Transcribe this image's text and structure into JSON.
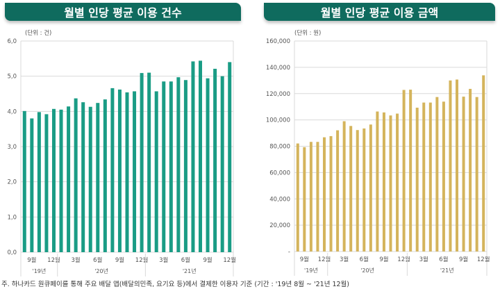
{
  "chart_data": [
    {
      "type": "bar",
      "title": "월별 인당 평균 이용 건수",
      "unit_label": "(단위 : 건)",
      "color": "#1a9c85",
      "ylim": [
        0,
        6
      ],
      "yticks": [
        "0,0",
        "1,0",
        "2,0",
        "3,0",
        "4,0",
        "5,0",
        "6,0"
      ],
      "grid": true,
      "categories": [
        "2019-08",
        "2019-09",
        "2019-10",
        "2019-11",
        "2019-12",
        "2020-01",
        "2020-02",
        "2020-03",
        "2020-04",
        "2020-05",
        "2020-06",
        "2020-07",
        "2020-08",
        "2020-09",
        "2020-10",
        "2020-11",
        "2020-12",
        "2021-01",
        "2021-02",
        "2021-03",
        "2021-04",
        "2021-05",
        "2021-06",
        "2021-07",
        "2021-08",
        "2021-09",
        "2021-10",
        "2021-11",
        "2021-12"
      ],
      "values": [
        4.01,
        3.8,
        3.98,
        3.92,
        4.07,
        4.05,
        4.14,
        4.37,
        4.26,
        4.13,
        4.24,
        4.34,
        4.66,
        4.62,
        4.54,
        4.57,
        5.09,
        5.1,
        4.57,
        4.85,
        4.85,
        4.97,
        4.89,
        5.42,
        5.44,
        4.94,
        5.21,
        5.0,
        5.4
      ],
      "month_labels": [
        {
          "index": 1,
          "text": "9월"
        },
        {
          "index": 4,
          "text": "12월"
        },
        {
          "index": 7,
          "text": "3월"
        },
        {
          "index": 10,
          "text": "6월"
        },
        {
          "index": 13,
          "text": "9월"
        },
        {
          "index": 16,
          "text": "12월"
        },
        {
          "index": 19,
          "text": "3월"
        },
        {
          "index": 22,
          "text": "6월"
        },
        {
          "index": 25,
          "text": "9월"
        },
        {
          "index": 28,
          "text": "12월"
        }
      ],
      "year_labels": [
        {
          "from": 0,
          "to": 4,
          "text": "'19년"
        },
        {
          "from": 5,
          "to": 16,
          "text": "'20년"
        },
        {
          "from": 17,
          "to": 28,
          "text": "'21년"
        }
      ]
    },
    {
      "type": "bar",
      "title": "월별 인당 평균 이용 금액",
      "unit_label": "(단위 : 원)",
      "color": "#d4b45c",
      "ylim": [
        0,
        160000
      ],
      "yticks": [
        "-",
        "20,000",
        "40,000",
        "60,000",
        "80,000",
        "100,000",
        "120,000",
        "140,000",
        "160,000"
      ],
      "grid": true,
      "categories": [
        "2019-08",
        "2019-09",
        "2019-10",
        "2019-11",
        "2019-12",
        "2020-01",
        "2020-02",
        "2020-03",
        "2020-04",
        "2020-05",
        "2020-06",
        "2020-07",
        "2020-08",
        "2020-09",
        "2020-10",
        "2020-11",
        "2020-12",
        "2021-01",
        "2021-02",
        "2021-03",
        "2021-04",
        "2021-05",
        "2021-06",
        "2021-07",
        "2021-08",
        "2021-09",
        "2021-10",
        "2021-11",
        "2021-12"
      ],
      "values": [
        82100,
        79300,
        83300,
        83300,
        86800,
        87700,
        92100,
        99000,
        95400,
        92300,
        93500,
        96500,
        106400,
        105700,
        103400,
        104800,
        122800,
        123000,
        109300,
        113200,
        113200,
        117400,
        113900,
        130000,
        130700,
        117700,
        123600,
        117400,
        133900
      ],
      "month_labels": [
        {
          "index": 1,
          "text": "9월"
        },
        {
          "index": 4,
          "text": "12월"
        },
        {
          "index": 7,
          "text": "3월"
        },
        {
          "index": 10,
          "text": "6월"
        },
        {
          "index": 13,
          "text": "9월"
        },
        {
          "index": 16,
          "text": "12월"
        },
        {
          "index": 19,
          "text": "3월"
        },
        {
          "index": 22,
          "text": "6월"
        },
        {
          "index": 25,
          "text": "9월"
        },
        {
          "index": 28,
          "text": "12월"
        }
      ],
      "year_labels": [
        {
          "from": 0,
          "to": 4,
          "text": "'19년"
        },
        {
          "from": 5,
          "to": 16,
          "text": "'20년"
        },
        {
          "from": 17,
          "to": 28,
          "text": "'21년"
        }
      ]
    }
  ],
  "footnote": "주. 하나카드 원큐페이를 통해 주요 배달 앱(배달의민족, 요기요 등)에서 결제한 이용자 기준 (기간 : '19년 8월 ~ '21년 12월)"
}
